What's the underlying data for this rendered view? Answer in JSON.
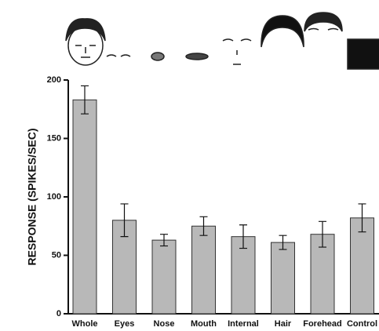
{
  "chart_data": {
    "type": "bar",
    "y_label": "RESPONSE (SPIKES/SEC)",
    "categories": [
      "Whole",
      "Eyes",
      "Nose",
      "Mouth",
      "Internal",
      "Hair",
      "Forehead",
      "Control"
    ],
    "values": [
      183,
      80,
      63,
      75,
      66,
      61,
      68,
      82
    ],
    "errors": [
      12,
      14,
      5,
      8,
      10,
      6,
      11,
      12
    ],
    "color": "#b8b8b8",
    "ylim": [
      0,
      200
    ],
    "yticks": [
      0,
      50,
      100,
      150,
      200
    ]
  }
}
